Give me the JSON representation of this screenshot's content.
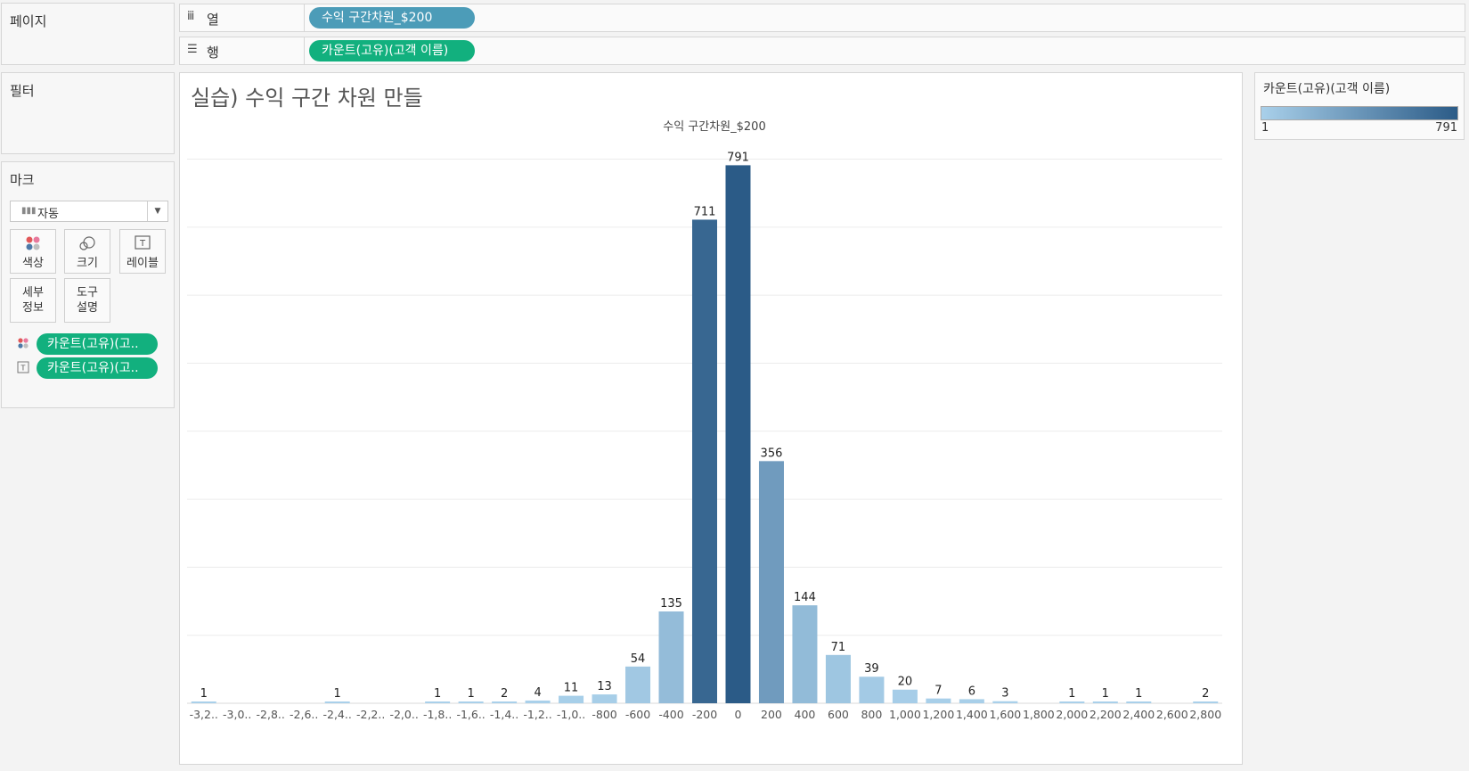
{
  "pages": {
    "label": "페이지"
  },
  "columns": {
    "label": "열",
    "icon": "columns-icon",
    "pill": "수익 구간차원_$200"
  },
  "rows": {
    "label": "행",
    "icon": "rows-icon",
    "pill": "카운트(고유)(고객 이름)"
  },
  "filters": {
    "label": "필터"
  },
  "marks": {
    "label": "마크",
    "mark_type": "자동",
    "buttons": {
      "color": "색상",
      "size": "크기",
      "label": "레이블",
      "detail": "세부 정보",
      "tooltip": "도구 설명"
    },
    "fields": [
      {
        "icon": "color-dots-icon",
        "pill": "카운트(고유)(고.."
      },
      {
        "icon": "label-text-icon",
        "pill": "카운트(고유)(고.."
      }
    ]
  },
  "viz": {
    "title": "실습) 수익 구간 차원 만들"
  },
  "legend": {
    "title": "카운트(고유)(고객 이름)",
    "min": "1",
    "max": "791",
    "color_low": "#a9d0ea",
    "color_high": "#2b5b87"
  },
  "chart_data": {
    "type": "bar",
    "title": "",
    "xlabel": "수익 구간차원_$200",
    "ylabel": "",
    "ylim": [
      0,
      840
    ],
    "grid": true,
    "categories": [
      "-3,2..",
      "-3,0..",
      "-2,8..",
      "-2,6..",
      "-2,4..",
      "-2,2..",
      "-2,0..",
      "-1,8..",
      "-1,6..",
      "-1,4..",
      "-1,2..",
      "-1,0..",
      "-800",
      "-600",
      "-400",
      "-200",
      "0",
      "200",
      "400",
      "600",
      "800",
      "1,000",
      "1,200",
      "1,400",
      "1,600",
      "1,800",
      "2,000",
      "2,200",
      "2,400",
      "2,600",
      "2,800"
    ],
    "values": [
      1,
      null,
      null,
      null,
      1,
      null,
      null,
      1,
      1,
      2,
      4,
      11,
      13,
      54,
      135,
      711,
      791,
      356,
      144,
      71,
      39,
      20,
      7,
      6,
      3,
      null,
      1,
      1,
      1,
      null,
      2
    ],
    "color_scale": {
      "min": 1,
      "max": 791,
      "low": "#a9d0ea",
      "high": "#2b5b87"
    }
  }
}
